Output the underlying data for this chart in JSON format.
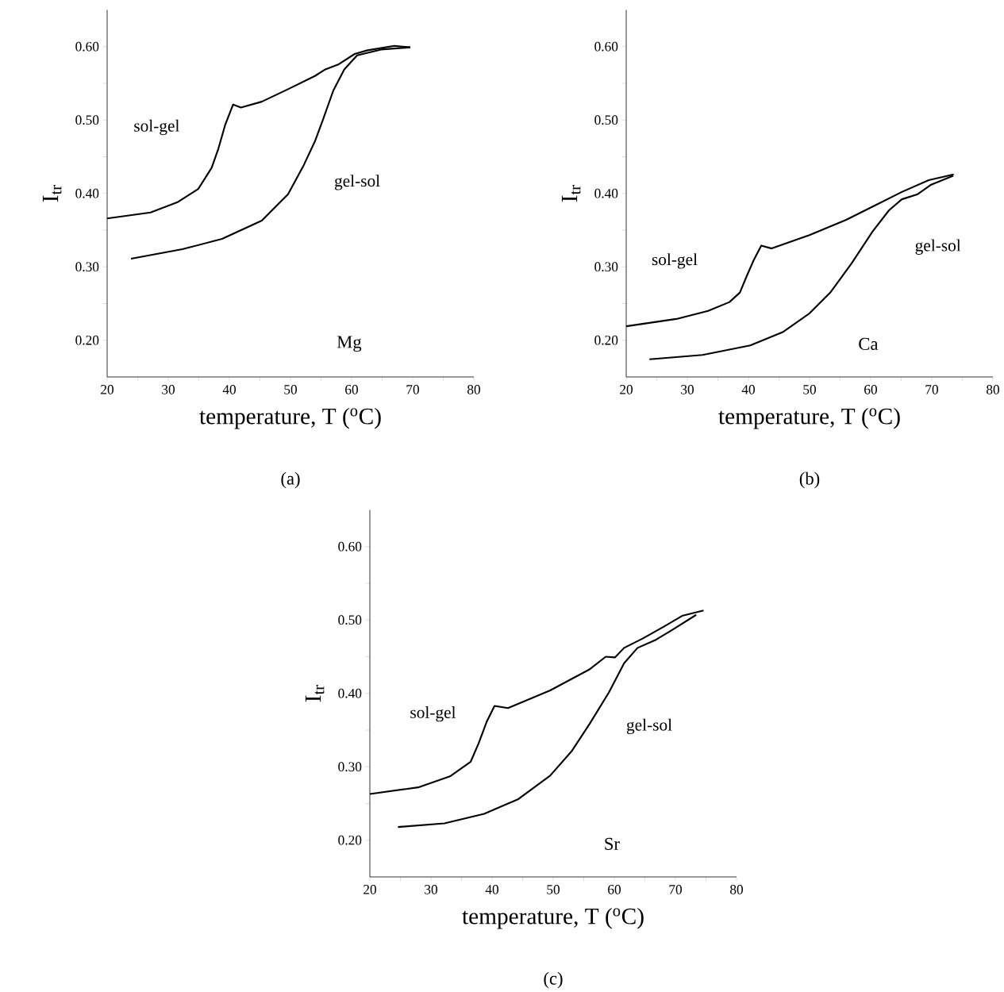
{
  "chart_data": [
    {
      "type": "line",
      "xlabel": "temperature, T ($^{o}$C)",
      "ylabel": "I$_{tr}$",
      "xlim": [
        20,
        80
      ],
      "ylim": [
        0.15,
        0.65
      ],
      "xticks": [
        20,
        {
          "value": 25,
          "label": null
        },
        30,
        {
          "value": 35,
          "label": null
        },
        40,
        {
          "value": 45,
          "label": null
        },
        50,
        {
          "value": 55,
          "label": null
        },
        60,
        {
          "value": 65,
          "label": null
        },
        70,
        {
          "value": 75,
          "label": null
        },
        80
      ],
      "yticks": [
        {
          "value": 0.2,
          "label": "0.20"
        },
        {
          "value": 0.25,
          "label": null
        },
        {
          "value": 0.3,
          "label": "0.30"
        },
        {
          "value": 0.35,
          "label": null
        },
        {
          "value": 0.4,
          "label": "0.40"
        },
        {
          "value": 0.45,
          "label": null
        },
        {
          "value": 0.5,
          "label": "0.50"
        },
        {
          "value": 0.55,
          "label": null
        },
        {
          "value": 0.6,
          "label": "0.60"
        }
      ],
      "series": [
        {
          "name": "sol-gel",
          "color": "#000000",
          "x": [
            20,
            27.1,
            31.5,
            34.9,
            37.1,
            38.2,
            39.3,
            40.6,
            41.9,
            45.3,
            49.6,
            54.0,
            55.7,
            57.9,
            60.5,
            62.6,
            67.0,
            69.6
          ],
          "values": [
            0.366,
            0.374,
            0.388,
            0.406,
            0.435,
            0.461,
            0.493,
            0.521,
            0.517,
            0.525,
            0.542,
            0.56,
            0.569,
            0.576,
            0.59,
            0.595,
            0.601,
            0.599
          ]
        },
        {
          "name": "gel-sol",
          "color": "#000000",
          "x": [
            23.9,
            32.3,
            38.8,
            45.3,
            49.6,
            52.2,
            54.0,
            55.3,
            57.0,
            58.8,
            60.9,
            64.8,
            69.6
          ],
          "values": [
            0.311,
            0.324,
            0.338,
            0.363,
            0.399,
            0.439,
            0.471,
            0.5,
            0.54,
            0.569,
            0.588,
            0.596,
            0.599
          ]
        }
      ],
      "annotations": [
        "Mg",
        "(a)"
      ]
    },
    {
      "type": "line",
      "xlabel": "temperature, T ($^{o}$C)",
      "ylabel": "I$_{tr}$",
      "xlim": [
        20,
        80
      ],
      "ylim": [
        0.15,
        0.65
      ],
      "xticks": [
        20,
        {
          "value": 25,
          "label": null
        },
        30,
        {
          "value": 35,
          "label": null
        },
        40,
        {
          "value": 45,
          "label": null
        },
        50,
        {
          "value": 55,
          "label": null
        },
        60,
        {
          "value": 65,
          "label": null
        },
        70,
        {
          "value": 75,
          "label": null
        },
        80
      ],
      "yticks": [
        {
          "value": 0.2,
          "label": "0.20"
        },
        {
          "value": 0.25,
          "label": null
        },
        {
          "value": 0.3,
          "label": "0.30"
        },
        {
          "value": 0.35,
          "label": null
        },
        {
          "value": 0.4,
          "label": "0.40"
        },
        {
          "value": 0.45,
          "label": null
        },
        {
          "value": 0.5,
          "label": "0.50"
        },
        {
          "value": 0.55,
          "label": null
        },
        {
          "value": 0.6,
          "label": "0.60"
        }
      ],
      "series": [
        {
          "name": "sol-gel",
          "color": "#000000",
          "x": [
            20,
            28.2,
            33.4,
            36.9,
            38.6,
            39.7,
            40.8,
            42.1,
            43.8,
            49.9,
            56.0,
            60.8,
            65.1,
            69.5,
            73.6
          ],
          "values": [
            0.219,
            0.229,
            0.24,
            0.252,
            0.265,
            0.287,
            0.308,
            0.329,
            0.325,
            0.343,
            0.364,
            0.384,
            0.402,
            0.418,
            0.426
          ]
        },
        {
          "name": "gel-sol",
          "color": "#000000",
          "x": [
            23.8,
            32.5,
            40.3,
            45.6,
            49.9,
            53.4,
            56.9,
            60.3,
            63.0,
            65.1,
            67.7,
            69.9,
            73.5
          ],
          "values": [
            0.174,
            0.18,
            0.193,
            0.211,
            0.236,
            0.265,
            0.305,
            0.348,
            0.377,
            0.392,
            0.399,
            0.412,
            0.424
          ]
        }
      ],
      "annotations": [
        "Ca",
        "(b)"
      ]
    },
    {
      "type": "line",
      "xlabel": "temperature, T ($^{o}$C)",
      "ylabel": "I$_{tr}$",
      "xlim": [
        20,
        80
      ],
      "ylim": [
        0.15,
        0.65
      ],
      "xticks": [
        20,
        {
          "value": 25,
          "label": null
        },
        30,
        {
          "value": 35,
          "label": null
        },
        40,
        {
          "value": 45,
          "label": null
        },
        50,
        {
          "value": 55,
          "label": null
        },
        60,
        {
          "value": 65,
          "label": null
        },
        70,
        {
          "value": 75,
          "label": null
        },
        80
      ],
      "yticks": [
        {
          "value": 0.2,
          "label": "0.20"
        },
        {
          "value": 0.25,
          "label": null
        },
        {
          "value": 0.3,
          "label": "0.30"
        },
        {
          "value": 0.35,
          "label": null
        },
        {
          "value": 0.4,
          "label": "0.40"
        },
        {
          "value": 0.45,
          "label": null
        },
        {
          "value": 0.5,
          "label": "0.50"
        },
        {
          "value": 0.55,
          "label": null
        },
        {
          "value": 0.6,
          "label": "0.60"
        }
      ],
      "series": [
        {
          "name": "sol-gel",
          "color": "#000000",
          "x": [
            20,
            27.9,
            33.1,
            36.5,
            37.8,
            39.1,
            40.4,
            42.6,
            49.5,
            56.0,
            58.6,
            60.1,
            61.6,
            64.7,
            68.1,
            71.2,
            74.6
          ],
          "values": [
            0.263,
            0.272,
            0.287,
            0.307,
            0.332,
            0.361,
            0.383,
            0.38,
            0.404,
            0.433,
            0.45,
            0.449,
            0.462,
            0.475,
            0.491,
            0.506,
            0.513
          ]
        },
        {
          "name": "gel-sol",
          "color": "#000000",
          "x": [
            24.6,
            32.2,
            38.7,
            44.3,
            49.5,
            53.0,
            56.0,
            59.1,
            61.6,
            63.8,
            66.8,
            69.4,
            73.4
          ],
          "values": [
            0.218,
            0.223,
            0.236,
            0.256,
            0.288,
            0.321,
            0.359,
            0.401,
            0.441,
            0.462,
            0.473,
            0.486,
            0.507
          ]
        }
      ],
      "annotations": [
        "Sr",
        "(c)"
      ]
    }
  ]
}
